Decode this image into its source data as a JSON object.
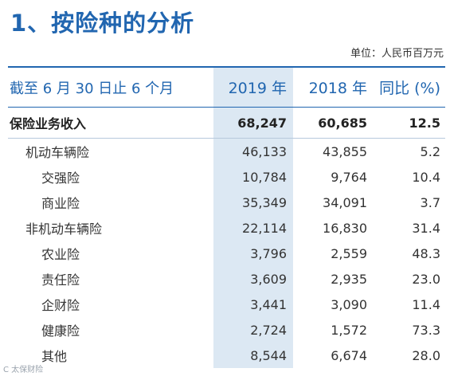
{
  "title": "1、按险种的分析",
  "unit": "单位：人民币百万元",
  "table": {
    "headers": {
      "period": "截至 6 月 30 日止 6 个月",
      "y2019": "2019 年",
      "y2018": "2018 年",
      "yoy": "同比 (%)"
    },
    "total": {
      "name": "保险业务收入",
      "y2019": "68,247",
      "y2018": "60,685",
      "yoy": "12.5"
    },
    "rows": [
      {
        "name": "机动车辆险",
        "y2019": "46,133",
        "y2018": "43,855",
        "yoy": "5.2"
      },
      {
        "name": "交强险",
        "y2019": "10,784",
        "y2018": "9,764",
        "yoy": "10.4"
      },
      {
        "name": "商业险",
        "y2019": "35,349",
        "y2018": "34,091",
        "yoy": "3.7"
      },
      {
        "name": "非机动车辆险",
        "y2019": "22,114",
        "y2018": "16,830",
        "yoy": "31.4"
      },
      {
        "name": "农业险",
        "y2019": "3,796",
        "y2018": "2,559",
        "yoy": "48.3"
      },
      {
        "name": "责任险",
        "y2019": "3,609",
        "y2018": "2,935",
        "yoy": "23.0"
      },
      {
        "name": "企财险",
        "y2019": "3,441",
        "y2018": "3,090",
        "yoy": "11.4"
      },
      {
        "name": "健康险",
        "y2019": "2,724",
        "y2018": "1,572",
        "yoy": "73.3"
      },
      {
        "name": "其他",
        "y2019": "8,544",
        "y2018": "6,674",
        "yoy": "28.0"
      }
    ]
  },
  "watermark": "C 太保财险",
  "colors": {
    "accent": "#2166b0",
    "highlight_column": "#dce8f3"
  }
}
